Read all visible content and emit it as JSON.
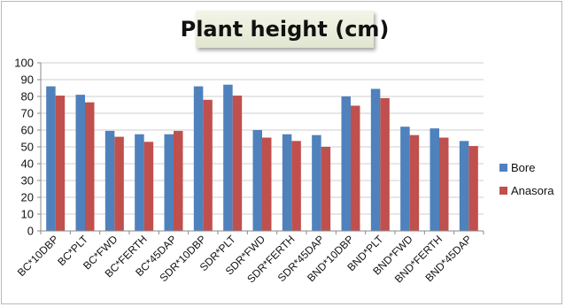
{
  "chart_data": {
    "type": "bar",
    "title": "Plant height (cm)",
    "xlabel": "",
    "ylabel": "",
    "ylim": [
      0,
      100
    ],
    "yticks": [
      0,
      10,
      20,
      30,
      40,
      50,
      60,
      70,
      80,
      90,
      100
    ],
    "grid": true,
    "legend_position": "right",
    "categories": [
      "BC*10DBP",
      "BC*PLT",
      "BC*FWD",
      "BC*FERTH",
      "BC*45DAP",
      "SDR*10DBP",
      "SDR*PLT",
      "SDR*FWD",
      "SDR*FERTH",
      "SDR*45DAP",
      "BND*10DBP",
      "BND*PLT",
      "BND*FWD",
      "BND*FERTH",
      "BND*45DAP"
    ],
    "series": [
      {
        "name": "Bore",
        "color": "#4f81bd",
        "values": [
          86,
          81,
          59.5,
          57.5,
          57.5,
          86,
          87,
          60,
          57.5,
          57,
          80,
          84.5,
          62,
          61,
          53.5
        ]
      },
      {
        "name": "Anasora",
        "color": "#c0504d",
        "values": [
          80.5,
          76.5,
          56,
          53,
          59.5,
          78,
          80.5,
          55.5,
          53.5,
          50,
          74.5,
          79,
          57,
          55.5,
          50.5
        ]
      }
    ]
  }
}
